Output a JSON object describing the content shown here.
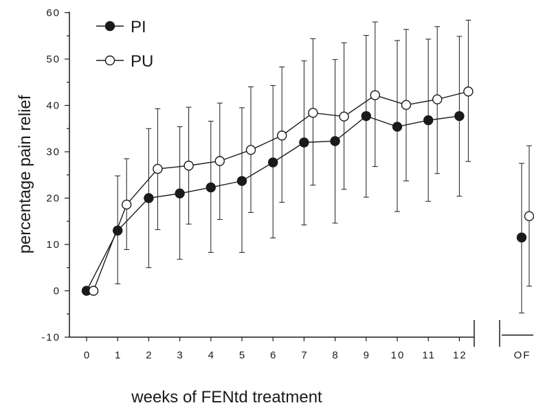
{
  "chart_data": {
    "type": "line",
    "ylabel": "percentage pain relief",
    "xlabel": "weeks of FENtd treatment",
    "ylim": [
      -10,
      60
    ],
    "yticks": [
      -10,
      0,
      10,
      20,
      30,
      40,
      50,
      60
    ],
    "categories": [
      "0",
      "1",
      "2",
      "3",
      "4",
      "5",
      "6",
      "7",
      "8",
      "9",
      "10",
      "11",
      "12"
    ],
    "extra_category": "OF",
    "legend_position": "top-left",
    "series": [
      {
        "name": "PI",
        "marker": "filled-circle",
        "values": [
          0,
          13,
          20,
          21,
          22.3,
          23.7,
          27.7,
          32,
          32.3,
          37.7,
          35.4,
          36.8,
          37.7
        ],
        "err_low": [
          0,
          1.5,
          5,
          6.8,
          8.3,
          8.3,
          11.4,
          14.2,
          14.6,
          20.2,
          17.1,
          19.3,
          20.4
        ],
        "err_high": [
          0,
          24.8,
          35,
          35.4,
          36.6,
          39.5,
          44.3,
          49.6,
          49.9,
          55.1,
          54,
          54.3,
          54.9
        ],
        "off": {
          "value": 11.5,
          "err_low": -4.8,
          "err_high": 27.5
        }
      },
      {
        "name": "PU",
        "marker": "open-circle",
        "values": [
          0,
          18.6,
          26.3,
          27,
          28,
          30.4,
          33.5,
          38.4,
          37.6,
          42.2,
          40.1,
          41.3,
          43
        ],
        "err_low": [
          0,
          8.9,
          13.2,
          14.4,
          15.4,
          16.9,
          19.1,
          22.8,
          21.9,
          26.8,
          23.7,
          25.3,
          27.9
        ],
        "err_high": [
          0,
          28.5,
          39.3,
          39.6,
          40.5,
          44,
          48.3,
          54.4,
          53.5,
          58,
          56.4,
          57,
          58.4
        ],
        "off": {
          "value": 16.1,
          "err_low": 1,
          "err_high": 31.3
        }
      }
    ]
  }
}
